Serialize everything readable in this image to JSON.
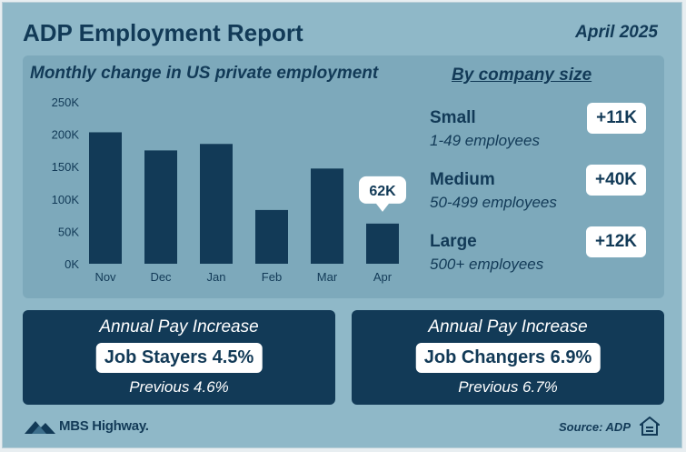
{
  "header": {
    "title": "ADP Employment Report",
    "date": "April 2025"
  },
  "chart_data": {
    "type": "bar",
    "title": "Monthly change in US private employment",
    "categories": [
      "Nov",
      "Dec",
      "Jan",
      "Feb",
      "Mar",
      "Apr"
    ],
    "values": [
      203000,
      175000,
      185000,
      83000,
      147000,
      62000
    ],
    "ylim": [
      0,
      250000
    ],
    "yticks": [
      0,
      50000,
      100000,
      150000,
      200000,
      250000
    ],
    "ytick_labels": [
      "0K",
      "50K",
      "100K",
      "150K",
      "200K",
      "250K"
    ],
    "grid": false,
    "annotations": [
      {
        "category": "Apr",
        "text": "62K"
      }
    ],
    "bar_color": "#123a57"
  },
  "company_size": {
    "title": "By company size",
    "items": [
      {
        "name": "Small",
        "range": "1-49 employees",
        "change": "+11K"
      },
      {
        "name": "Medium",
        "range": "50-499 employees",
        "change": "+40K"
      },
      {
        "name": "Large",
        "range": "500+ employees",
        "change": "+12K"
      }
    ]
  },
  "pay": {
    "stayers": {
      "label": "Annual Pay Increase",
      "value": "Job Stayers 4.5%",
      "previous": "Previous 4.6%"
    },
    "changers": {
      "label": "Annual Pay Increase",
      "value": "Job Changers 6.9%",
      "previous": "Previous 6.7%"
    }
  },
  "footer": {
    "logo": "MBS Highway.",
    "source": "Source: ADP",
    "logo_icon": "mountain-logo-icon",
    "housing_icon": "equal-housing-icon"
  },
  "colors": {
    "background": "#8fb8c8",
    "panel": "#7da9bb",
    "navy": "#123a57",
    "white": "#ffffff"
  }
}
